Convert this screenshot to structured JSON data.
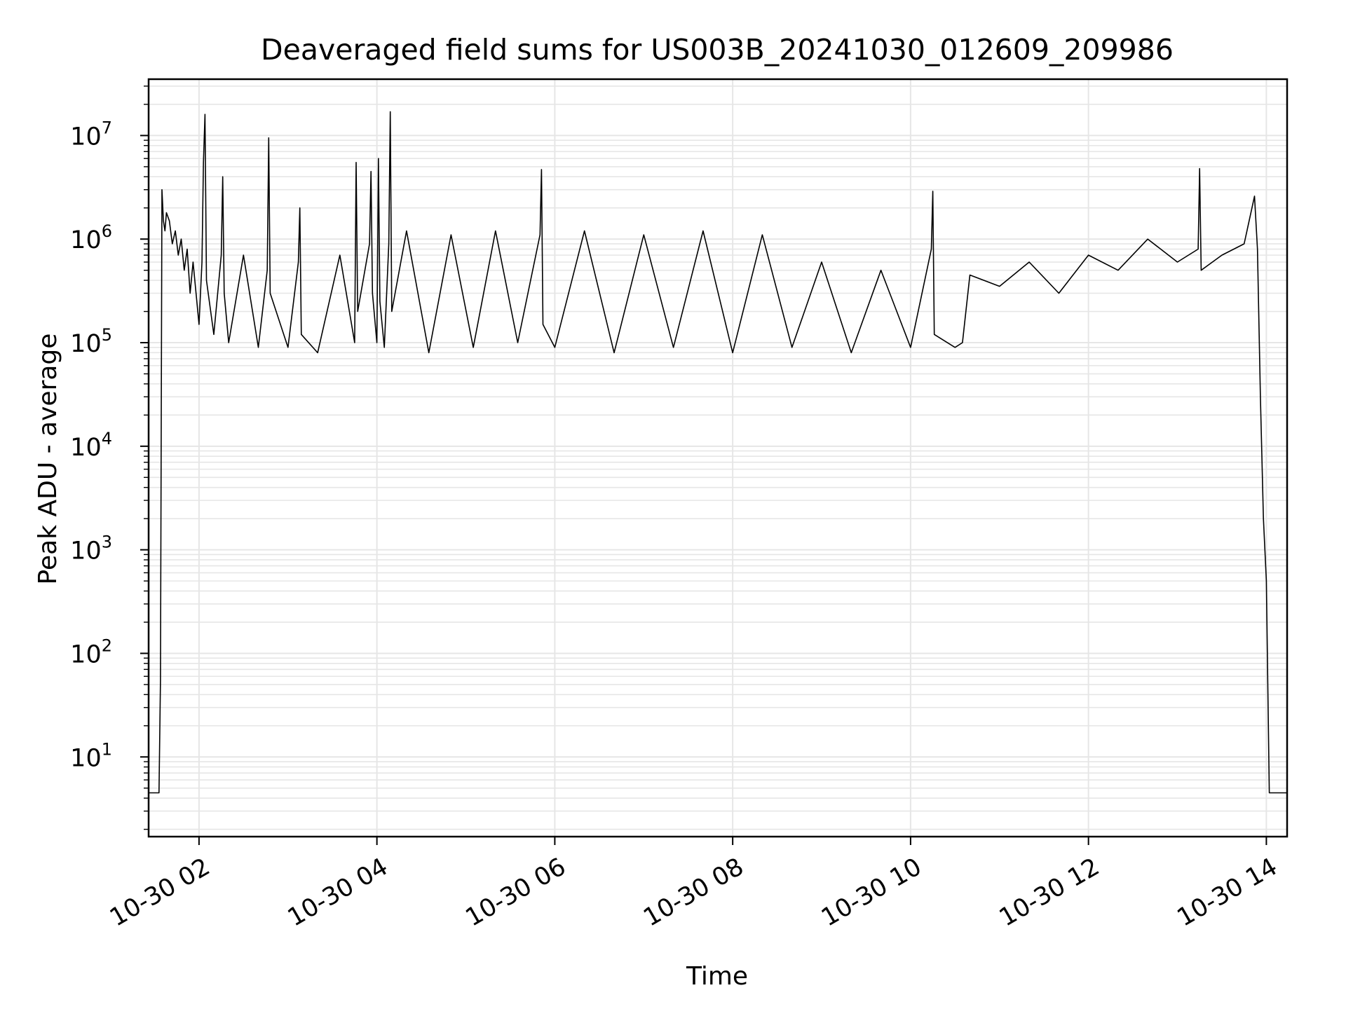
{
  "chart_data": {
    "type": "line",
    "title": "Deaveraged field sums for US003B_20241030_012609_209986",
    "xlabel": "Time",
    "ylabel": "Peak ADU - average",
    "yscale": "log",
    "grid": true,
    "line_color": "#000000",
    "grid_color": "#e6e6e6",
    "xlim": [
      "2024-10-30 01:26",
      "2024-10-30 14:14"
    ],
    "ylim": [
      1.7,
      35000000
    ],
    "x_ticks": [
      {
        "value": "2024-10-30 02:00",
        "label": "10-30 02"
      },
      {
        "value": "2024-10-30 04:00",
        "label": "10-30 04"
      },
      {
        "value": "2024-10-30 06:00",
        "label": "10-30 06"
      },
      {
        "value": "2024-10-30 08:00",
        "label": "10-30 08"
      },
      {
        "value": "2024-10-30 10:00",
        "label": "10-30 10"
      },
      {
        "value": "2024-10-30 12:00",
        "label": "10-30 12"
      },
      {
        "value": "2024-10-30 14:00",
        "label": "10-30 14"
      }
    ],
    "y_ticks": [
      {
        "value": 10,
        "base": "10",
        "exp": "1"
      },
      {
        "value": 100,
        "base": "10",
        "exp": "2"
      },
      {
        "value": 1000,
        "base": "10",
        "exp": "3"
      },
      {
        "value": 10000,
        "base": "10",
        "exp": "4"
      },
      {
        "value": 100000,
        "base": "10",
        "exp": "5"
      },
      {
        "value": 1000000,
        "base": "10",
        "exp": "6"
      },
      {
        "value": 10000000,
        "base": "10",
        "exp": "7"
      }
    ],
    "series": [
      {
        "x": [
          "2024-10-30 01:26",
          "2024-10-30 01:33",
          "2024-10-30 01:34",
          "2024-10-30 01:35",
          "2024-10-30 01:36",
          "2024-10-30 01:37",
          "2024-10-30 01:38",
          "2024-10-30 01:40",
          "2024-10-30 01:42",
          "2024-10-30 01:44",
          "2024-10-30 01:46",
          "2024-10-30 01:48",
          "2024-10-30 01:50",
          "2024-10-30 01:52",
          "2024-10-30 01:54",
          "2024-10-30 01:56",
          "2024-10-30 02:00",
          "2024-10-30 02:02",
          "2024-10-30 02:03",
          "2024-10-30 02:04",
          "2024-10-30 02:05",
          "2024-10-30 02:10",
          "2024-10-30 02:15",
          "2024-10-30 02:16",
          "2024-10-30 02:17",
          "2024-10-30 02:20",
          "2024-10-30 02:30",
          "2024-10-30 02:40",
          "2024-10-30 02:46",
          "2024-10-30 02:47",
          "2024-10-30 02:48",
          "2024-10-30 03:00",
          "2024-10-30 03:07",
          "2024-10-30 03:08",
          "2024-10-30 03:09",
          "2024-10-30 03:20",
          "2024-10-30 03:35",
          "2024-10-30 03:45",
          "2024-10-30 03:46",
          "2024-10-30 03:47",
          "2024-10-30 03:55",
          "2024-10-30 03:56",
          "2024-10-30 03:57",
          "2024-10-30 04:00",
          "2024-10-30 04:01",
          "2024-10-30 04:02",
          "2024-10-30 04:05",
          "2024-10-30 04:08",
          "2024-10-30 04:09",
          "2024-10-30 04:10",
          "2024-10-30 04:20",
          "2024-10-30 04:35",
          "2024-10-30 04:50",
          "2024-10-30 05:05",
          "2024-10-30 05:20",
          "2024-10-30 05:35",
          "2024-10-30 05:50",
          "2024-10-30 05:51",
          "2024-10-30 05:52",
          "2024-10-30 06:00",
          "2024-10-30 06:20",
          "2024-10-30 06:40",
          "2024-10-30 07:00",
          "2024-10-30 07:20",
          "2024-10-30 07:40",
          "2024-10-30 08:00",
          "2024-10-30 08:20",
          "2024-10-30 08:40",
          "2024-10-30 09:00",
          "2024-10-30 09:20",
          "2024-10-30 09:40",
          "2024-10-30 10:00",
          "2024-10-30 10:14",
          "2024-10-30 10:15",
          "2024-10-30 10:16",
          "2024-10-30 10:30",
          "2024-10-30 10:35",
          "2024-10-30 10:40",
          "2024-10-30 11:00",
          "2024-10-30 11:20",
          "2024-10-30 11:40",
          "2024-10-30 12:00",
          "2024-10-30 12:20",
          "2024-10-30 12:40",
          "2024-10-30 13:00",
          "2024-10-30 13:14",
          "2024-10-30 13:15",
          "2024-10-30 13:16",
          "2024-10-30 13:30",
          "2024-10-30 13:45",
          "2024-10-30 13:52",
          "2024-10-30 13:54",
          "2024-10-30 13:56",
          "2024-10-30 13:58",
          "2024-10-30 14:00",
          "2024-10-30 14:02",
          "2024-10-30 14:03",
          "2024-10-30 14:04",
          "2024-10-30 14:14"
        ],
        "y": [
          4.5,
          4.5,
          55,
          3000000,
          1500000,
          1200000,
          1800000,
          1500000,
          900000,
          1200000,
          700000,
          1000000,
          500000,
          800000,
          300000,
          600000,
          150000,
          600000,
          5500000,
          16000000,
          400000,
          120000,
          700000,
          4000000,
          300000,
          100000,
          700000,
          90000,
          500000,
          9500000,
          300000,
          90000,
          600000,
          2000000,
          120000,
          80000,
          700000,
          100000,
          5500000,
          200000,
          900000,
          4500000,
          300000,
          100000,
          6000000,
          250000,
          90000,
          900000,
          17000000,
          200000,
          1200000,
          80000,
          1100000,
          90000,
          1200000,
          100000,
          1100000,
          4700000,
          150000,
          90000,
          1200000,
          80000,
          1100000,
          90000,
          1200000,
          80000,
          1100000,
          90000,
          600000,
          80000,
          500000,
          90000,
          800000,
          2900000,
          120000,
          90000,
          100000,
          450000,
          350000,
          600000,
          300000,
          700000,
          500000,
          1000000,
          600000,
          800000,
          4800000,
          500000,
          700000,
          900000,
          2600000,
          800000,
          30000,
          2000,
          500,
          4.5,
          4.5,
          4.5,
          4.5
        ]
      }
    ]
  }
}
